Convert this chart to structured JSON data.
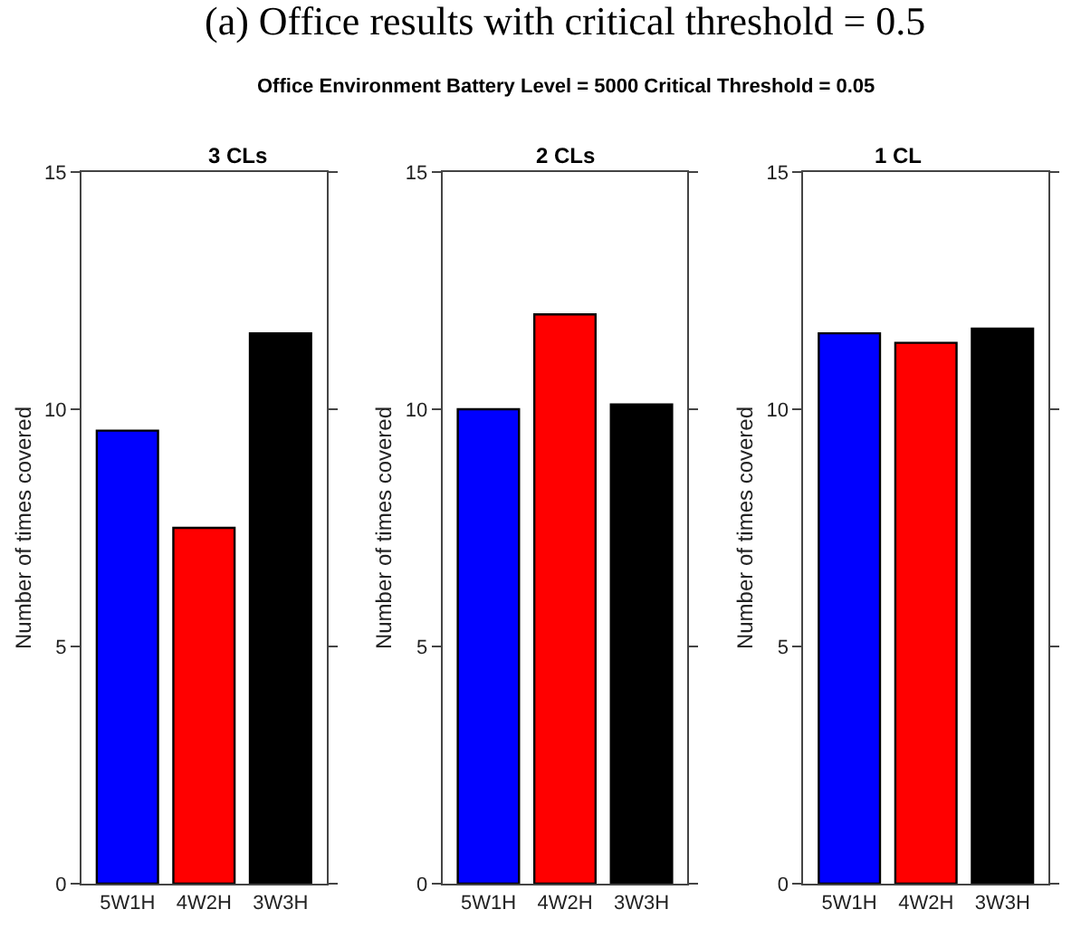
{
  "chart_data": [
    {
      "type": "bar",
      "title": "3 CLs",
      "ylabel": "Number of times covered",
      "categories": [
        "5W1H",
        "4W2H",
        "3W3H"
      ],
      "values": [
        9.55,
        7.5,
        11.6
      ],
      "colors": [
        "#0000ff",
        "#ff0000",
        "#000000"
      ],
      "ylim": [
        0,
        15
      ],
      "yticks": [
        0,
        5,
        10,
        15
      ],
      "annotations": [
        "(a) Office results with critical threshold = 0.5",
        "Office Environment Battery Level = 5000 Critical Threshold = 0.05"
      ]
    },
    {
      "type": "bar",
      "title": "2 CLs",
      "ylabel": "Number of times covered",
      "categories": [
        "5W1H",
        "4W2H",
        "3W3H"
      ],
      "values": [
        10.0,
        12.0,
        10.1
      ],
      "colors": [
        "#0000ff",
        "#ff0000",
        "#000000"
      ],
      "ylim": [
        0,
        15
      ],
      "yticks": [
        0,
        5,
        10,
        15
      ]
    },
    {
      "type": "bar",
      "title": "1 CL",
      "ylabel": "Number of times covered",
      "categories": [
        "5W1H",
        "4W2H",
        "3W3H"
      ],
      "values": [
        11.6,
        11.4,
        11.7
      ],
      "colors": [
        "#0000ff",
        "#ff0000",
        "#000000"
      ],
      "ylim": [
        0,
        15
      ],
      "yticks": [
        0,
        5,
        10,
        15
      ]
    }
  ]
}
